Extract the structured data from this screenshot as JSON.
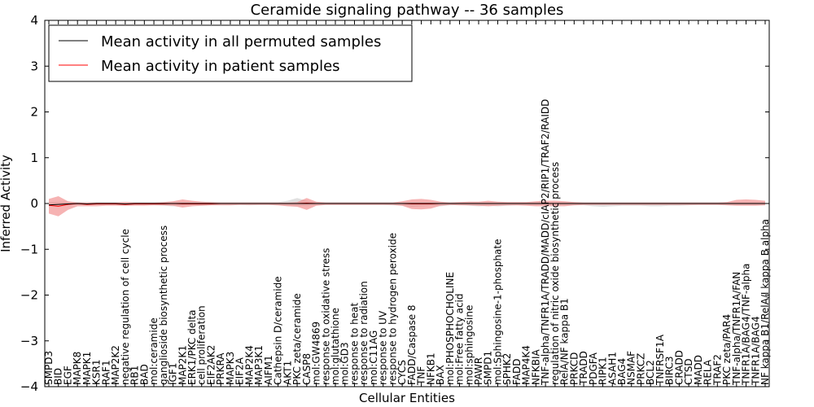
{
  "chart_data": {
    "type": "line",
    "title": "Ceramide signaling pathway -- 36 samples",
    "xlabel": "Cellular Entities",
    "ylabel": "Inferred Activity",
    "ylim": [
      -4,
      4
    ],
    "yticks": [
      -4,
      -3,
      -2,
      -1,
      0,
      1,
      2,
      3,
      4
    ],
    "grid": false,
    "legend_position": "top-left",
    "colors": {
      "permuted": "#000000",
      "patient": "#ff0000",
      "permuted_band": "#cccccc",
      "patient_band": "#f08080"
    },
    "categories": [
      "SMPD3",
      "BID",
      "EGF",
      "MAPK8",
      "MAPK1",
      "KSR1",
      "RAF1",
      "MAP2K2",
      "negative regulation of cell cycle",
      "RB1",
      "BAD",
      "mol:ceramide",
      "ganglioside biosynthetic process",
      "IGF1",
      "MAP2K1",
      "ERK1/PKC delta",
      "cell proliferation",
      "EIF2AK2",
      "PRKRA",
      "MAPK3",
      "EIF2A",
      "MAP2K4",
      "MAP3K1",
      "AIFM1",
      "Cathepsin D/ceramide",
      "AKT1",
      "PKC zeta/ceramide",
      "CASP8",
      "mol:GW4869",
      "response to oxidative stress",
      "mol:glutathione",
      "mol:GD3",
      "response to heat",
      "response to radiation",
      "mol:C11AG",
      "response to UV",
      "response to hydrogen peroxide",
      "CYCS",
      "FADD/Caspase 8",
      "TNF",
      "NFKB1",
      "BAX",
      "mol:PHOSPHOCHOLINE",
      "mol:Free fatty acid",
      "mol:sphingosine",
      "PAWR",
      "SMPD1",
      "mol:Sphingosine-1-phosphate",
      "SPHK2",
      "FADD",
      "MAP4K4",
      "NFKBIA",
      "TNF-alpha/TNFR1A/TRADD/MADD/cIAP2/RIP1/TRAF2/RAIDD",
      "regulation of nitric oxide biosynthetic process",
      "RelA/NF kappa B1",
      "PRKCD",
      "TRADD",
      "PDGFA",
      "RIPK1",
      "ASAH1",
      "BAG4",
      "NSMAF",
      "PRKCZ",
      "BCL2",
      "TNFRSF1A",
      "BIRC3",
      "CRADD",
      "CTSD",
      "MADD",
      "RELA",
      "TRAF2",
      "PKC zeta/PAR4",
      "TNF-alpha/TNFR1A/FAN",
      "TNFR1A/BAG4/TNF-alpha",
      "TNFR1A/BAG4",
      "NF kappa B1/RelA/I kappa B alpha"
    ],
    "series": [
      {
        "name": "Mean activity in all permuted samples",
        "values": [
          -0.03,
          -0.02,
          -0.01,
          0.0,
          -0.01,
          0.0,
          0.0,
          0.0,
          -0.01,
          0.0,
          0.0,
          0.0,
          0.0,
          0.0,
          0.0,
          0.0,
          0.0,
          0.0,
          0.0,
          0.0,
          0.0,
          0.0,
          0.0,
          0.0,
          0.0,
          0.0,
          0.0,
          0.0,
          0.0,
          0.0,
          0.0,
          0.0,
          0.0,
          0.0,
          0.0,
          0.0,
          0.0,
          0.0,
          0.0,
          0.0,
          0.0,
          0.0,
          0.0,
          0.0,
          0.0,
          0.0,
          0.0,
          0.0,
          0.0,
          0.0,
          0.0,
          0.0,
          0.0,
          0.0,
          0.0,
          0.0,
          0.0,
          0.0,
          0.0,
          0.0,
          0.0,
          0.0,
          0.0,
          0.0,
          0.0,
          0.0,
          0.0,
          0.0,
          0.0,
          0.0,
          0.0,
          0.0,
          0.0,
          0.0,
          0.0,
          0.0
        ],
        "lower": [
          -0.05,
          -0.05,
          -0.04,
          -0.03,
          -0.03,
          -0.03,
          -0.03,
          -0.03,
          -0.04,
          -0.03,
          -0.03,
          -0.04,
          -0.05,
          -0.06,
          -0.05,
          -0.04,
          -0.05,
          -0.04,
          -0.03,
          -0.03,
          -0.03,
          -0.04,
          -0.03,
          -0.03,
          -0.04,
          -0.05,
          -0.06,
          -0.05,
          -0.04,
          -0.03,
          -0.03,
          -0.03,
          -0.03,
          -0.03,
          -0.03,
          -0.03,
          -0.04,
          -0.05,
          -0.07,
          -0.06,
          -0.05,
          -0.06,
          -0.04,
          -0.03,
          -0.05,
          -0.06,
          -0.05,
          -0.06,
          -0.05,
          -0.04,
          -0.03,
          -0.04,
          -0.03,
          -0.03,
          -0.04,
          -0.04,
          -0.04,
          -0.06,
          -0.07,
          -0.06,
          -0.05,
          -0.05,
          -0.05,
          -0.06,
          -0.06,
          -0.05,
          -0.05,
          -0.04,
          -0.03,
          -0.03,
          -0.03,
          -0.03,
          -0.03,
          -0.03,
          -0.03,
          -0.03
        ],
        "upper": [
          0.03,
          0.03,
          0.03,
          0.03,
          0.03,
          0.03,
          0.03,
          0.03,
          0.03,
          0.03,
          0.03,
          0.03,
          0.03,
          0.04,
          0.04,
          0.03,
          0.03,
          0.03,
          0.03,
          0.03,
          0.03,
          0.03,
          0.03,
          0.03,
          0.03,
          0.06,
          0.12,
          0.06,
          0.03,
          0.03,
          0.03,
          0.03,
          0.03,
          0.03,
          0.03,
          0.03,
          0.03,
          0.03,
          0.03,
          0.03,
          0.03,
          0.03,
          0.03,
          0.03,
          0.03,
          0.03,
          0.03,
          0.03,
          0.03,
          0.03,
          0.03,
          0.03,
          0.03,
          0.03,
          0.03,
          0.03,
          0.03,
          0.03,
          0.03,
          0.03,
          0.03,
          0.03,
          0.03,
          0.03,
          0.03,
          0.03,
          0.03,
          0.03,
          0.03,
          0.03,
          0.03,
          0.03,
          0.03,
          0.03,
          0.03,
          0.03
        ]
      },
      {
        "name": "Mean activity in patient samples",
        "values": [
          -0.04,
          -0.06,
          -0.02,
          0.0,
          -0.02,
          -0.01,
          -0.01,
          -0.01,
          -0.02,
          -0.01,
          -0.01,
          -0.01,
          -0.01,
          0.0,
          -0.01,
          -0.01,
          -0.01,
          -0.01,
          0.0,
          0.0,
          0.0,
          0.0,
          0.0,
          0.0,
          0.0,
          0.0,
          0.0,
          0.01,
          0.0,
          0.0,
          0.0,
          0.0,
          0.0,
          0.0,
          0.0,
          0.0,
          0.0,
          0.0,
          -0.01,
          -0.01,
          -0.01,
          0.0,
          0.0,
          0.0,
          0.0,
          0.0,
          0.0,
          0.0,
          0.0,
          0.0,
          0.0,
          0.0,
          0.0,
          0.0,
          0.0,
          0.0,
          0.0,
          0.0,
          0.0,
          0.0,
          0.0,
          0.0,
          0.0,
          0.0,
          0.0,
          0.0,
          0.0,
          0.0,
          0.0,
          0.0,
          0.0,
          0.0,
          0.0,
          0.0,
          0.0,
          0.0
        ],
        "lower": [
          -0.22,
          -0.28,
          -0.14,
          -0.06,
          -0.06,
          -0.06,
          -0.05,
          -0.05,
          -0.05,
          -0.05,
          -0.05,
          -0.04,
          -0.04,
          -0.05,
          -0.09,
          -0.06,
          -0.05,
          -0.04,
          -0.04,
          -0.04,
          -0.03,
          -0.03,
          -0.03,
          -0.03,
          -0.04,
          -0.06,
          -0.07,
          -0.14,
          -0.05,
          -0.03,
          -0.03,
          -0.03,
          -0.03,
          -0.03,
          -0.03,
          -0.03,
          -0.03,
          -0.05,
          -0.12,
          -0.13,
          -0.11,
          -0.05,
          -0.03,
          -0.04,
          -0.04,
          -0.05,
          -0.06,
          -0.05,
          -0.04,
          -0.04,
          -0.05,
          -0.06,
          -0.06,
          -0.06,
          -0.06,
          -0.04,
          -0.03,
          -0.03,
          -0.03,
          -0.03,
          -0.03,
          -0.03,
          -0.03,
          -0.03,
          -0.03,
          -0.03,
          -0.03,
          -0.03,
          -0.03,
          -0.03,
          -0.03,
          -0.04,
          -0.05,
          -0.05,
          -0.05,
          -0.04
        ],
        "upper": [
          0.1,
          0.16,
          0.05,
          0.02,
          0.02,
          0.02,
          0.02,
          0.02,
          0.03,
          0.02,
          0.02,
          0.02,
          0.03,
          0.05,
          0.09,
          0.06,
          0.04,
          0.03,
          0.02,
          0.02,
          0.02,
          0.02,
          0.02,
          0.02,
          0.02,
          0.02,
          0.03,
          0.12,
          0.04,
          0.02,
          0.02,
          0.02,
          0.02,
          0.02,
          0.02,
          0.02,
          0.02,
          0.05,
          0.09,
          0.1,
          0.08,
          0.04,
          0.02,
          0.03,
          0.04,
          0.04,
          0.06,
          0.04,
          0.03,
          0.03,
          0.03,
          0.05,
          0.06,
          0.06,
          0.05,
          0.03,
          0.02,
          0.02,
          0.02,
          0.02,
          0.02,
          0.02,
          0.02,
          0.02,
          0.02,
          0.02,
          0.02,
          0.02,
          0.02,
          0.02,
          0.02,
          0.03,
          0.08,
          0.09,
          0.08,
          0.06
        ]
      }
    ]
  }
}
